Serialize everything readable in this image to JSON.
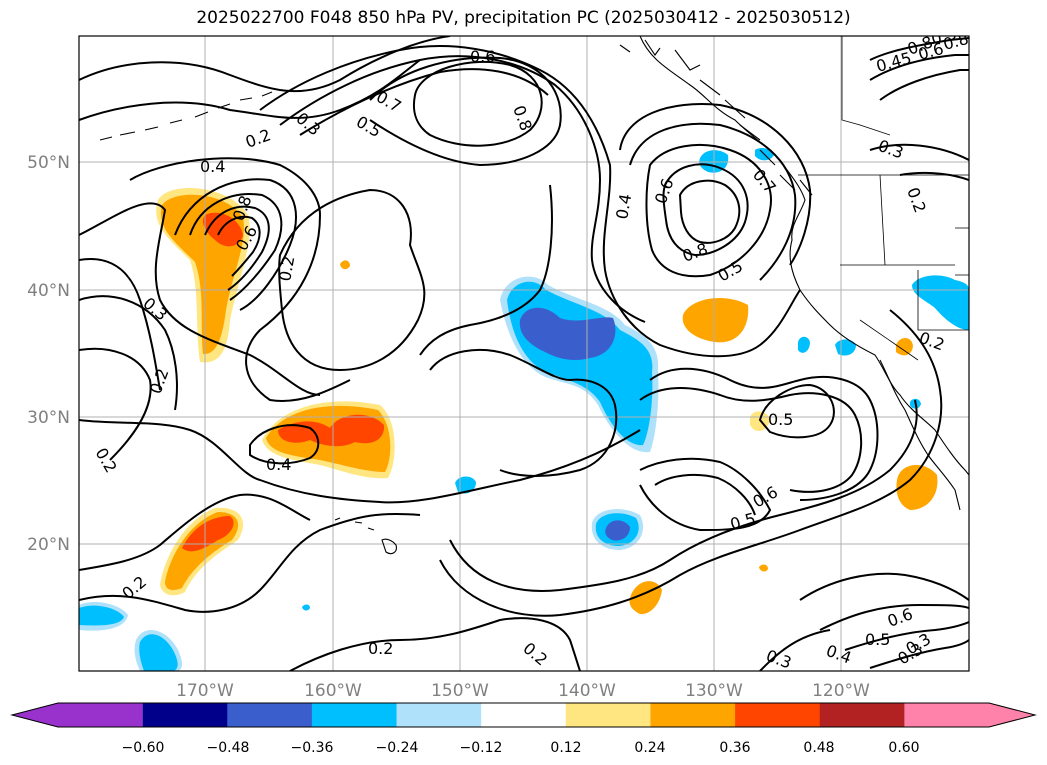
{
  "title": "2025022700 F048 850 hPa PV, precipitation PC (2025030412 - 2025030512)",
  "map": {
    "lon_ticks": [
      "170°W",
      "160°W",
      "150°W",
      "140°W",
      "130°W",
      "120°W"
    ],
    "lat_ticks": [
      "50°N",
      "40°N",
      "30°N",
      "20°N"
    ],
    "tick_color": "#808080",
    "contour_labels": [
      "0.6",
      "0.8",
      "0.7",
      "0.5",
      "0.3",
      "0.2",
      "0.4",
      "0.8",
      "0.6",
      "0.2",
      "0.3",
      "0.2",
      "0.4",
      "0.2",
      "0.2",
      "0.4",
      "0.6",
      "0.8",
      "0.7",
      "0.5",
      "0.8",
      "0.6",
      "0.5",
      "0.5",
      "0.3",
      "0.2",
      "0.2",
      "0.3",
      "0.4",
      "0.5",
      "0.6",
      "0.3",
      "0.2",
      "0.45",
      "0.6",
      "0.8",
      "0.3",
      "0.2",
      "0.3"
    ]
  },
  "colorbar": {
    "ticks": [
      "−0.60",
      "−0.48",
      "−0.36",
      "−0.24",
      "−0.12",
      "0.12",
      "0.24",
      "0.36",
      "0.48",
      "0.60"
    ],
    "colors": [
      "#9932cc",
      "#00008b",
      "#3a5fcd",
      "#00bfff",
      "#afe1fa",
      "#ffffff",
      "#ffe680",
      "#ffa500",
      "#ff4500",
      "#b22222",
      "#ff82ab"
    ]
  }
}
